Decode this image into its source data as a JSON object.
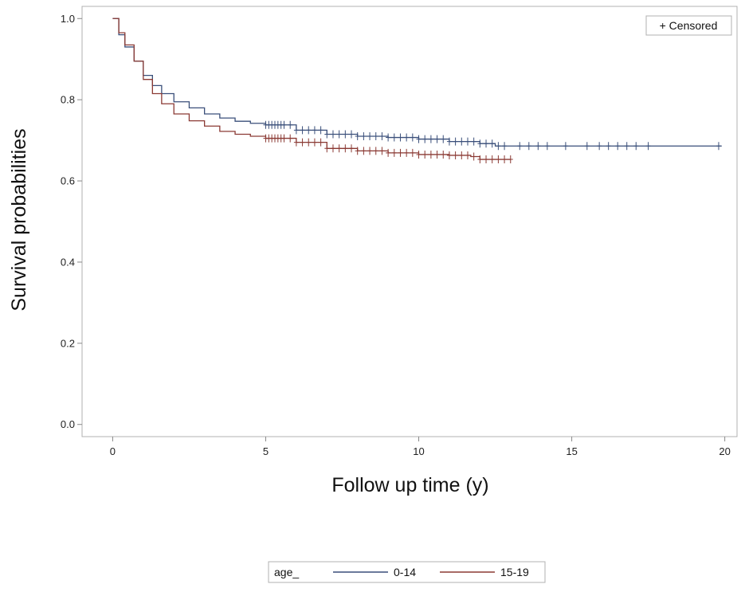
{
  "chart_data": {
    "type": "line",
    "xlabel": "Follow up time (y)",
    "ylabel": "Survival probabilities",
    "xlim": [
      -1,
      20.4
    ],
    "ylim": [
      -0.03,
      1.03
    ],
    "x_ticks": [
      "0",
      "5",
      "10",
      "15",
      "20"
    ],
    "y_ticks": [
      "0.0",
      "0.2",
      "0.4",
      "0.6",
      "0.8",
      "1.0"
    ],
    "inset_legend": "+ Censored",
    "grid": false,
    "legend": {
      "position": "bottom",
      "title": "age_",
      "entries": [
        "0-14",
        "15-19"
      ]
    },
    "series": [
      {
        "name": "0-14",
        "color": "#3a4f7a",
        "x": [
          0,
          0.2,
          0.4,
          0.7,
          1.0,
          1.3,
          1.6,
          2.0,
          2.5,
          3.0,
          3.5,
          4.0,
          4.5,
          5.0,
          6.0,
          7.0,
          8.0,
          9.0,
          10.0,
          11.0,
          12.0,
          12.5,
          14.0,
          17.0,
          19.9
        ],
        "y": [
          1.0,
          0.96,
          0.93,
          0.895,
          0.86,
          0.835,
          0.815,
          0.795,
          0.78,
          0.765,
          0.755,
          0.747,
          0.742,
          0.738,
          0.725,
          0.715,
          0.71,
          0.707,
          0.703,
          0.697,
          0.692,
          0.686,
          0.686,
          0.686,
          0.686
        ],
        "censored_x": [
          5.0,
          5.1,
          5.2,
          5.3,
          5.4,
          5.5,
          5.6,
          5.8,
          6.0,
          6.2,
          6.4,
          6.6,
          6.8,
          7.0,
          7.2,
          7.4,
          7.6,
          7.8,
          8.0,
          8.2,
          8.4,
          8.6,
          8.8,
          9.0,
          9.2,
          9.4,
          9.6,
          9.8,
          10.0,
          10.2,
          10.4,
          10.6,
          10.8,
          11.0,
          11.2,
          11.4,
          11.6,
          11.8,
          12.0,
          12.2,
          12.4,
          12.6,
          12.8,
          13.3,
          13.6,
          13.9,
          14.2,
          14.8,
          15.5,
          15.9,
          16.2,
          16.5,
          16.8,
          17.1,
          17.5,
          19.8
        ]
      },
      {
        "name": "15-19",
        "color": "#8b3a34",
        "x": [
          0,
          0.2,
          0.4,
          0.7,
          1.0,
          1.3,
          1.6,
          2.0,
          2.5,
          3.0,
          3.5,
          4.0,
          4.5,
          5.0,
          6.0,
          7.0,
          8.0,
          9.0,
          10.0,
          11.0,
          11.7,
          12.0,
          12.6,
          13.0
        ],
        "y": [
          1.0,
          0.965,
          0.935,
          0.895,
          0.85,
          0.815,
          0.79,
          0.765,
          0.748,
          0.735,
          0.722,
          0.715,
          0.71,
          0.705,
          0.695,
          0.68,
          0.674,
          0.669,
          0.665,
          0.663,
          0.66,
          0.653,
          0.653,
          0.653
        ],
        "censored_x": [
          5.0,
          5.1,
          5.2,
          5.3,
          5.4,
          5.5,
          5.6,
          5.8,
          6.0,
          6.2,
          6.4,
          6.6,
          6.8,
          7.0,
          7.2,
          7.4,
          7.6,
          7.8,
          8.0,
          8.2,
          8.4,
          8.6,
          8.8,
          9.0,
          9.2,
          9.4,
          9.6,
          9.8,
          10.0,
          10.2,
          10.4,
          10.6,
          10.8,
          11.0,
          11.2,
          11.4,
          11.6,
          11.8,
          12.0,
          12.2,
          12.4,
          12.6,
          12.8,
          13.0
        ]
      }
    ]
  }
}
